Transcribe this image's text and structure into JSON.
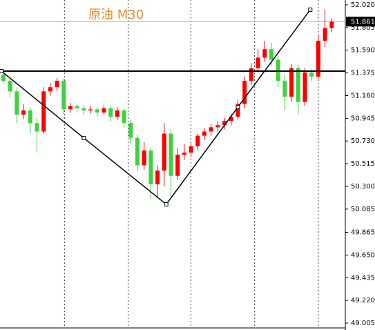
{
  "chart_data": {
    "type": "candlestick",
    "title": "原油 M30",
    "open": [
      51.36,
      51.3,
      51.2,
      50.98,
      51.02,
      50.9,
      50.82,
      51.2,
      51.24,
      51.3,
      51.03,
      51.06,
      51.04,
      51.02,
      51.03,
      51.0,
      51.04,
      50.96,
      51.02,
      50.9,
      50.76,
      50.5,
      50.64,
      50.32,
      50.45,
      50.8,
      50.4,
      50.6,
      50.62,
      50.68,
      50.78,
      50.82,
      50.86,
      50.88,
      50.92,
      50.96,
      51.08,
      51.3,
      51.42,
      51.52,
      51.6,
      51.5,
      51.3,
      51.15,
      51.42,
      51.1,
      51.38,
      51.34,
      51.68,
      51.8
    ],
    "high": [
      51.39,
      51.33,
      51.24,
      51.08,
      51.05,
      50.95,
      51.24,
      51.28,
      51.33,
      51.32,
      51.09,
      51.08,
      51.07,
      51.06,
      51.05,
      51.07,
      51.06,
      51.05,
      51.04,
      50.93,
      50.79,
      50.72,
      50.67,
      50.5,
      50.9,
      50.84,
      50.66,
      50.7,
      50.72,
      50.8,
      50.85,
      50.89,
      50.92,
      50.95,
      50.99,
      51.12,
      51.34,
      51.47,
      51.6,
      51.68,
      51.66,
      51.54,
      51.36,
      51.46,
      51.45,
      51.42,
      51.41,
      51.74,
      51.98,
      51.89
    ],
    "low": [
      51.27,
      51.14,
      50.9,
      50.94,
      50.8,
      50.62,
      50.8,
      51.16,
      51.2,
      50.98,
      51.0,
      51.0,
      50.98,
      50.99,
      50.96,
      50.98,
      50.92,
      50.93,
      50.86,
      50.7,
      50.44,
      50.46,
      50.18,
      50.2,
      50.3,
      50.2,
      50.36,
      50.55,
      50.58,
      50.64,
      50.74,
      50.78,
      50.82,
      50.84,
      50.88,
      50.93,
      51.04,
      51.26,
      51.38,
      51.48,
      51.44,
      51.24,
      51.02,
      51.1,
      50.98,
      51.06,
      51.3,
      51.32,
      51.62,
      51.76
    ],
    "close": [
      51.3,
      51.2,
      50.98,
      51.02,
      50.9,
      50.82,
      51.2,
      51.24,
      51.3,
      51.03,
      51.06,
      51.04,
      51.02,
      51.03,
      51.0,
      51.04,
      50.96,
      51.02,
      50.9,
      50.76,
      50.5,
      50.64,
      50.32,
      50.45,
      50.8,
      50.4,
      50.6,
      50.62,
      50.68,
      50.78,
      50.82,
      50.86,
      50.88,
      50.92,
      50.96,
      51.08,
      51.3,
      51.42,
      51.52,
      51.6,
      51.5,
      51.3,
      51.15,
      51.42,
      51.1,
      51.38,
      51.34,
      51.68,
      51.8,
      51.86
    ],
    "up_color": "#ff0000",
    "down_color": "#3fd23f",
    "last_price": 51.861,
    "hline": 51.392,
    "trendline": {
      "x": [
        -0.3,
        12,
        24.3,
        35,
        45.8
      ],
      "y": [
        51.392,
        50.758,
        50.13,
        51.052,
        51.974
      ]
    },
    "separators": [
      9.1,
      18.6,
      28,
      37.5,
      47
    ],
    "ylim": [
      49.005,
      52.02
    ],
    "yticks": [
      {
        "value": 52.02,
        "label": "52.020"
      },
      51.805,
      {
        "value": 51.59,
        "label": "51.590"
      },
      51.375,
      {
        "value": 51.16,
        "label": "51.160"
      },
      50.945,
      {
        "value": 50.73,
        "label": "50.730"
      },
      50.515,
      {
        "value": 50.3,
        "label": "50.300"
      },
      50.085,
      49.865,
      {
        "value": 49.65,
        "label": "49.650"
      },
      49.435,
      {
        "value": 49.22,
        "label": "49.220"
      },
      49.005
    ]
  }
}
